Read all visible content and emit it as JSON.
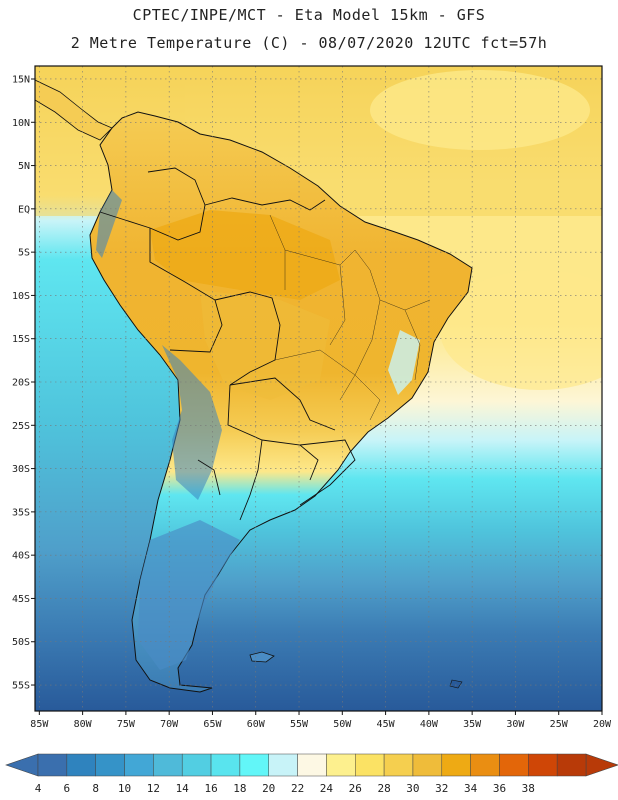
{
  "header": {
    "line1": "CPTEC/INPE/MCT -  Eta Model 15km - GFS",
    "line2": "2 Metre Temperature (C) - 08/07/2020 12UTC fct=57h"
  },
  "map": {
    "lat_labels": [
      "15N",
      "10N",
      "5N",
      "EQ",
      "5S",
      "10S",
      "15S",
      "20S",
      "25S",
      "30S",
      "35S",
      "40S",
      "45S",
      "50S",
      "55S"
    ],
    "lat_values": [
      15,
      10,
      5,
      0,
      -5,
      -10,
      -15,
      -20,
      -25,
      -30,
      -35,
      -40,
      -45,
      -50,
      -55
    ],
    "lon_labels": [
      "85W",
      "80W",
      "75W",
      "70W",
      "65W",
      "60W",
      "55W",
      "50W",
      "45W",
      "40W",
      "35W",
      "30W",
      "25W",
      "20W"
    ],
    "lon_values": [
      -85,
      -80,
      -75,
      -70,
      -65,
      -60,
      -55,
      -50,
      -45,
      -40,
      -35,
      -30,
      -25,
      -20
    ],
    "extent": {
      "lon_min": -85.5,
      "lon_max": -20,
      "lat_min": -58,
      "lat_max": 16.5
    }
  },
  "colorbar": {
    "labels": [
      "4",
      "6",
      "8",
      "10",
      "12",
      "14",
      "16",
      "18",
      "20",
      "22",
      "24",
      "26",
      "28",
      "30",
      "32",
      "34",
      "36",
      "38"
    ],
    "colors": [
      "#3a6fae",
      "#2f83be",
      "#3593c8",
      "#42a7d6",
      "#4fbad9",
      "#52cee2",
      "#59e4ee",
      "#62f6f8",
      "#c8f3f8",
      "#fdf8e4",
      "#fdf08e",
      "#fbe264",
      "#f5cf4f",
      "#efbc3a",
      "#eeaa14",
      "#ea8e12",
      "#e36609",
      "#cf4606",
      "#b83a08"
    ],
    "left_end_color": "#3a6fae",
    "right_end_color": "#b83a08"
  },
  "colors": {
    "ocean_far_south": "#285a9a",
    "ocean_south": "#3b7bb3",
    "ocean_mid": "#4f9fca",
    "ocean_cool": "#4fc4dc",
    "ocean_cyan": "#5fe6f0",
    "ocean_light": "#c8f4f8",
    "ocean_warm": "#fdf6d6",
    "ocean_warmer": "#fde88a",
    "ocean_warmest": "#f6d35a",
    "land_hot": "#f0b431",
    "land_warm": "#f5cc54",
    "andes_cold": "#3b84bf",
    "patagonia": "#4a8cc4",
    "border": "#111111",
    "grid": "#777777"
  }
}
